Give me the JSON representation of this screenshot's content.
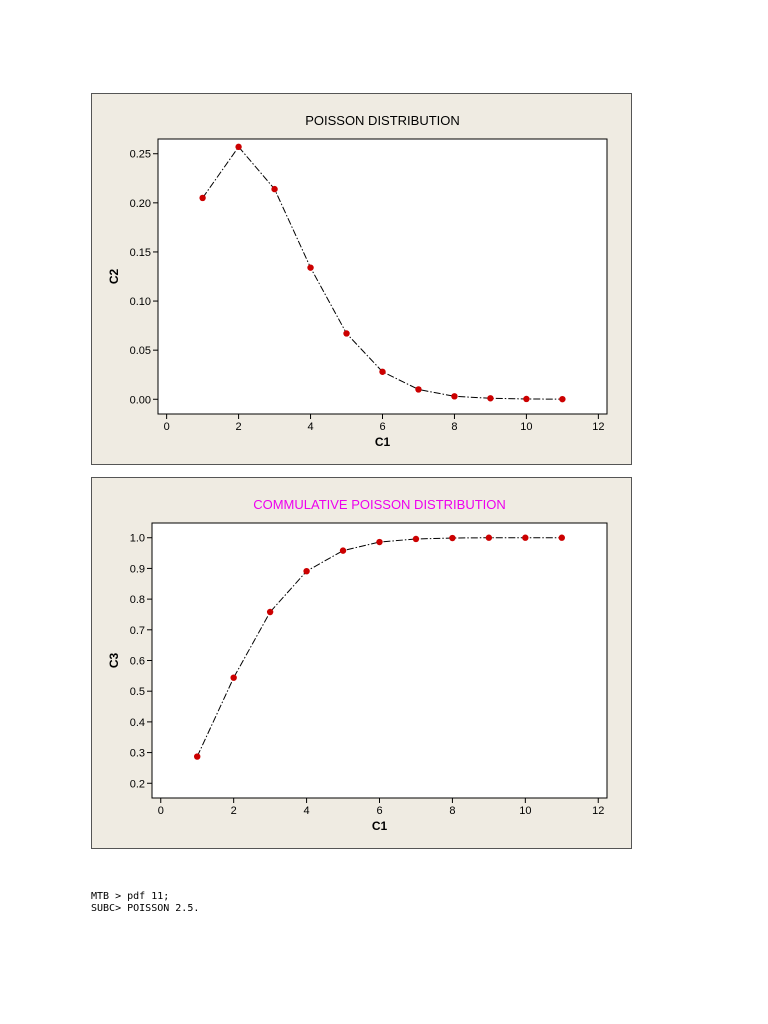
{
  "chart_data": [
    {
      "type": "line",
      "title": "POISSON DISTRIBUTION",
      "title_color": "#000000",
      "xlabel": "C1",
      "ylabel": "C2",
      "xlim": [
        0,
        12
      ],
      "ylim": [
        0,
        0.25
      ],
      "xticks": [
        0,
        2,
        4,
        6,
        8,
        10,
        12
      ],
      "xtick_labels": [
        "0",
        "2",
        "4",
        "6",
        "8",
        "10",
        "12"
      ],
      "yticks": [
        0,
        0.05,
        0.1,
        0.15,
        0.2,
        0.25
      ],
      "ytick_labels": [
        "0.00",
        "0.05",
        "0.10",
        "0.15",
        "0.20",
        "0.25"
      ],
      "grid": false,
      "marker_color": "#cc0000",
      "line_color": "#000000",
      "x": [
        1,
        2,
        3,
        4,
        5,
        6,
        7,
        8,
        9,
        10,
        11
      ],
      "y": [
        0.205,
        0.257,
        0.214,
        0.134,
        0.067,
        0.028,
        0.01,
        0.003,
        0.001,
        0.0003,
        0.0001
      ]
    },
    {
      "type": "line",
      "title": "COMMULATIVE POISSON DISTRIBUTION",
      "title_color": "#ee00ee",
      "xlabel": "C1",
      "ylabel": "C3",
      "xlim": [
        0,
        12
      ],
      "ylim": [
        0.2,
        1.0
      ],
      "xticks": [
        0,
        2,
        4,
        6,
        8,
        10,
        12
      ],
      "xtick_labels": [
        "0",
        "2",
        "4",
        "6",
        "8",
        "10",
        "12"
      ],
      "yticks": [
        0.2,
        0.3,
        0.4,
        0.5,
        0.6,
        0.7,
        0.8,
        0.9,
        1.0
      ],
      "ytick_labels": [
        "0.2",
        "0.3",
        "0.4",
        "0.5",
        "0.6",
        "0.7",
        "0.8",
        "0.9",
        "1.0"
      ],
      "grid": false,
      "marker_color": "#cc0000",
      "line_color": "#000000",
      "x": [
        1,
        2,
        3,
        4,
        5,
        6,
        7,
        8,
        9,
        10,
        11
      ],
      "y": [
        0.287,
        0.544,
        0.758,
        0.891,
        0.958,
        0.986,
        0.996,
        0.999,
        1.0,
        1.0,
        1.0
      ]
    }
  ],
  "console": {
    "line1": "MTB > pdf 11;",
    "line2": "SUBC> POISSON 2.5."
  }
}
